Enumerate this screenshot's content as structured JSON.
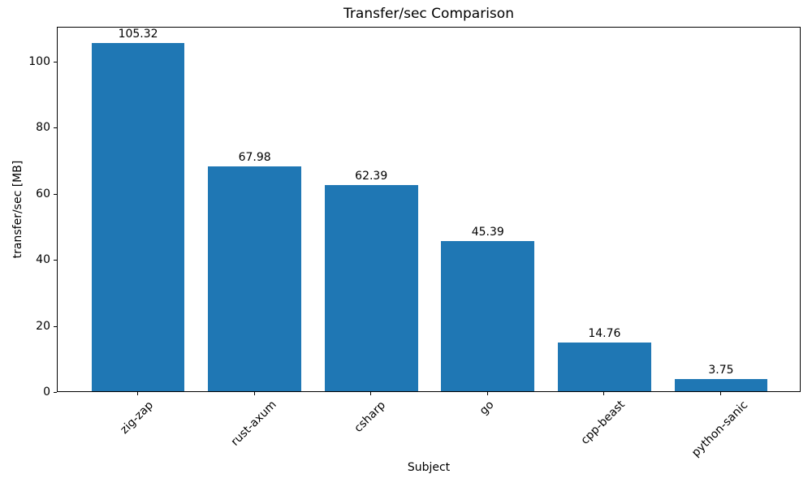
{
  "chart_data": {
    "type": "bar",
    "title": "Transfer/sec Comparison",
    "xlabel": "Subject",
    "ylabel": "transfer/sec [MB]",
    "categories": [
      "zig-zap",
      "rust-axum",
      "csharp",
      "go",
      "cpp-beast",
      "python-sanic"
    ],
    "values": [
      105.32,
      67.98,
      62.39,
      45.39,
      14.76,
      3.75
    ],
    "bar_value_labels": [
      "105.32",
      "67.98",
      "62.39",
      "45.39",
      "14.76",
      "3.75"
    ],
    "yticks": [
      0,
      20,
      40,
      60,
      80,
      100
    ],
    "ylim": [
      0,
      110.59
    ],
    "xlim_units": [
      -0.69,
      5.69
    ],
    "bar_width_units": 0.8,
    "x_tick_rotation_deg": 45,
    "grid": false,
    "legend": null,
    "bar_color": "#1f77b4",
    "text_color": "#000000",
    "axis_color": "#000000",
    "background_color": "#ffffff"
  }
}
